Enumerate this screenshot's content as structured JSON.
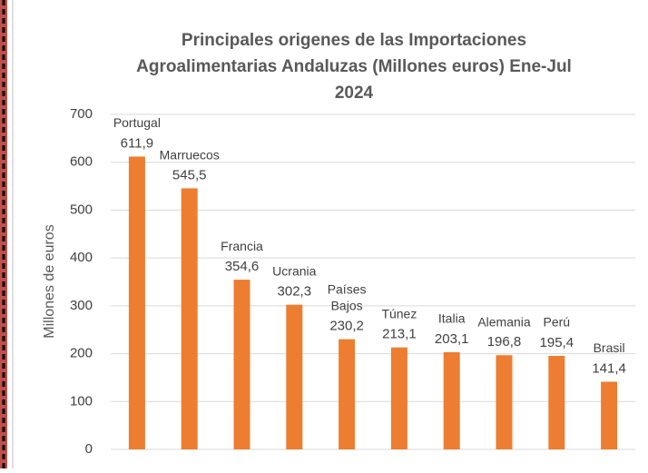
{
  "chart_data": {
    "type": "bar",
    "title": [
      "Principales origenes de las Importaciones",
      "Agroalimentarias Andaluzas (Millones euros) Ene-Jul",
      "2024"
    ],
    "y_label": "Millones de euros",
    "categories": [
      "Portugal",
      "Marruecos",
      "Francia",
      "Ucrania",
      "Países Bajos",
      "Túnez",
      "Italia",
      "Alemania",
      "Perú",
      "Brasil"
    ],
    "values": [
      611.9,
      545.5,
      354.6,
      302.3,
      230.2,
      213.1,
      203.1,
      196.8,
      195.4,
      141.4
    ],
    "value_labels": [
      "611,9",
      "545,5",
      "354,6",
      "302,3",
      "230,2",
      "213,1",
      "203,1",
      "196,8",
      "195,4",
      "141,4"
    ],
    "color": "#ed7d31",
    "ylim": [
      0,
      700
    ],
    "yticks": [
      0,
      100,
      200,
      300,
      400,
      500,
      600,
      700
    ],
    "grid": true
  }
}
